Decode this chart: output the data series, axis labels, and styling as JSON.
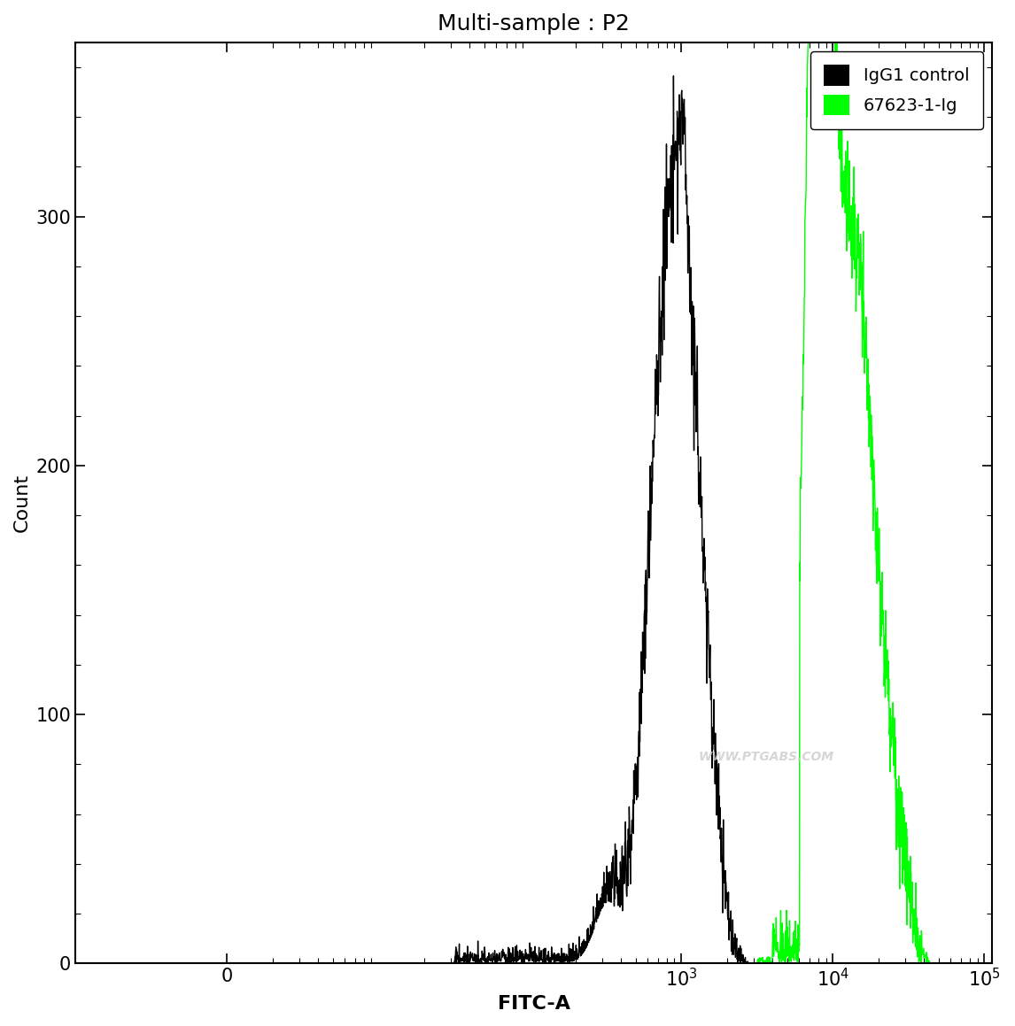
{
  "title": "Multi-sample : P2",
  "xlabel": "FITC-A",
  "ylabel": "Count",
  "background_color": "#ffffff",
  "title_fontsize": 18,
  "axis_label_fontsize": 16,
  "tick_label_fontsize": 15,
  "legend_entries": [
    "IgG1 control",
    "67623-1-Ig"
  ],
  "legend_colors": [
    "#000000",
    "#00ff00"
  ],
  "watermark": "WWW.PTGABS.COM",
  "y_max": 370,
  "y_ticks": [
    0,
    100,
    200,
    300
  ]
}
